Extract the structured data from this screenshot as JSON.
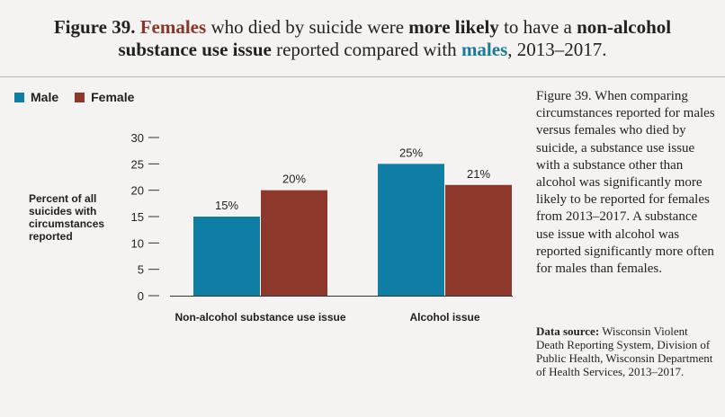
{
  "title": {
    "line1_prefix": "Figure 39.",
    "line1_females": "Females",
    "line1_mid": "who died by suicide were",
    "line1_more_likely": "more likely",
    "line1_to_have": "to have a",
    "line1_non_alcohol": "non-alcohol",
    "line2_substance": "substance use issue",
    "line2_reported": "reported compared with",
    "line2_males": "males",
    "line2_years": ", 2013–2017."
  },
  "legend": {
    "male_label": "Male",
    "female_label": "Female"
  },
  "colors": {
    "male": "#0f7ea4",
    "female": "#8e372b",
    "title_female": "#8a3527",
    "title_male": "#1b7a9c"
  },
  "y_axis_label": "Percent of all suicides with circumstances reported",
  "chart_data": {
    "type": "bar",
    "categories": [
      "Non-alcohol substance use issue",
      "Alcohol issue"
    ],
    "series": [
      {
        "name": "Male",
        "values": [
          15,
          25
        ],
        "labels": [
          "15%",
          "25%"
        ]
      },
      {
        "name": "Female",
        "values": [
          20,
          21
        ],
        "labels": [
          "20%",
          "21%"
        ]
      }
    ],
    "ylim": [
      0,
      30
    ],
    "yticks": [
      0,
      5,
      10,
      15,
      20,
      25,
      30
    ],
    "ytick_labels": [
      "0",
      "5",
      "10",
      "15",
      "20",
      "25",
      "30"
    ],
    "ylabel": "Percent of all suicides with circumstances reported",
    "xlabel": "",
    "legend": "top-left",
    "grid": false
  },
  "caption": {
    "figure_ref": "Figure 39.",
    "text": "When comparing circumstances reported for males versus females who died by suicide, a substance use issue with a substance other than alcohol was significantly more likely to be reported for females from 2013–2017. A substance use issue with alcohol was reported significantly more often for males than females."
  },
  "source": {
    "label": "Data source:",
    "text": "Wisconsin Violent Death Reporting System, Division of Public Health, Wisconsin Department of Health Services, 2013–2017."
  }
}
